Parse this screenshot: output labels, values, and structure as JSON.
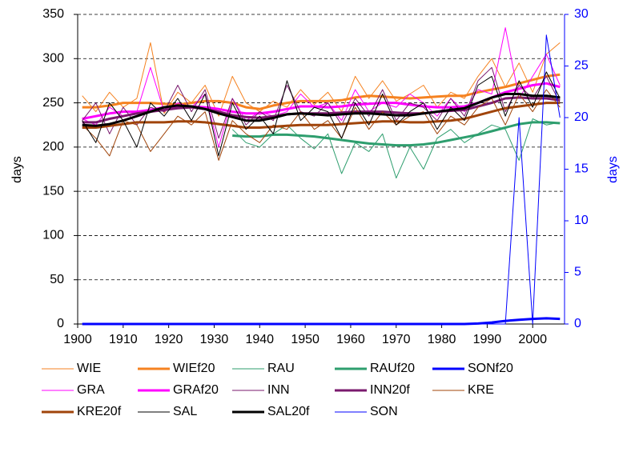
{
  "chart_data": {
    "type": "line",
    "x": [
      1901,
      1904,
      1907,
      1910,
      1913,
      1916,
      1919,
      1922,
      1925,
      1928,
      1931,
      1934,
      1937,
      1940,
      1943,
      1946,
      1949,
      1952,
      1955,
      1958,
      1961,
      1964,
      1967,
      1970,
      1973,
      1976,
      1979,
      1982,
      1985,
      1988,
      1991,
      1994,
      1997,
      2000,
      2003,
      2006
    ],
    "xlim": [
      1900,
      2007
    ],
    "xticks": [
      1900,
      1910,
      1920,
      1930,
      1940,
      1950,
      1960,
      1970,
      1980,
      1990,
      2000
    ],
    "ylim": [
      0,
      350
    ],
    "yticks": [
      0,
      50,
      100,
      150,
      200,
      250,
      300,
      350
    ],
    "y2lim": [
      0,
      30
    ],
    "y2ticks": [
      0,
      5,
      10,
      15,
      20,
      25,
      30
    ],
    "ylabel": "days",
    "y2label": "days",
    "grid": true,
    "y2color": "#0000ff",
    "series": [
      {
        "name": "WIE",
        "color": "#f58220",
        "line_width": 1,
        "values": [
          258,
          240,
          262,
          245,
          255,
          318,
          238,
          262,
          250,
          270,
          235,
          280,
          250,
          240,
          252,
          245,
          265,
          248,
          262,
          240,
          280,
          255,
          275,
          252,
          260,
          270,
          245,
          262,
          255,
          280,
          300,
          268,
          295,
          262,
          305,
          318
        ]
      },
      {
        "name": "WIEf20",
        "color": "#f58220",
        "line_width": 3,
        "values": [
          245,
          245,
          247,
          250,
          250,
          250,
          249,
          248,
          250,
          252,
          252,
          250,
          245,
          243,
          247,
          250,
          252,
          252,
          252,
          253,
          256,
          258,
          257,
          256,
          255,
          256,
          257,
          258,
          258,
          262,
          265,
          268,
          272,
          276,
          280,
          282
        ]
      },
      {
        "name": "RAU",
        "color": "#2e9e6e",
        "line_width": 1,
        "values": [
          null,
          null,
          null,
          null,
          null,
          null,
          null,
          null,
          null,
          null,
          null,
          220,
          205,
          200,
          215,
          225,
          210,
          198,
          215,
          170,
          205,
          195,
          215,
          165,
          200,
          175,
          210,
          220,
          205,
          215,
          225,
          220,
          185,
          232,
          225,
          228
        ]
      },
      {
        "name": "RAUf20",
        "color": "#2e9e6e",
        "line_width": 3,
        "values": [
          null,
          null,
          null,
          null,
          null,
          null,
          null,
          null,
          null,
          null,
          null,
          213,
          212,
          212,
          214,
          214,
          213,
          212,
          210,
          208,
          206,
          204,
          203,
          202,
          202,
          203,
          205,
          208,
          211,
          214,
          218,
          222,
          226,
          228,
          228,
          227
        ]
      },
      {
        "name": "SONf20",
        "color": "#0000ff",
        "line_width": 3,
        "axis": "y2",
        "values": [
          0,
          0,
          0,
          0,
          0,
          0,
          0,
          0,
          0,
          0,
          0,
          0,
          0,
          0,
          0,
          0,
          0,
          0,
          0,
          0,
          0,
          0,
          0,
          0,
          0,
          0,
          0,
          0,
          0,
          0.05,
          0.15,
          0.3,
          0.4,
          0.5,
          0.55,
          0.5
        ]
      },
      {
        "name": "GRA",
        "color": "#ff00ff",
        "line_width": 1,
        "values": [
          232,
          225,
          245,
          235,
          240,
          290,
          240,
          250,
          245,
          260,
          200,
          255,
          230,
          240,
          235,
          240,
          260,
          245,
          250,
          230,
          265,
          240,
          250,
          245,
          260,
          250,
          235,
          255,
          240,
          265,
          260,
          335,
          255,
          280,
          305,
          270
        ]
      },
      {
        "name": "GRAf20",
        "color": "#ff00ff",
        "line_width": 3,
        "values": [
          232,
          235,
          238,
          240,
          240,
          242,
          245,
          246,
          246,
          245,
          243,
          240,
          238,
          238,
          240,
          243,
          246,
          246,
          245,
          246,
          248,
          249,
          250,
          250,
          248,
          246,
          245,
          245,
          246,
          250,
          256,
          262,
          266,
          270,
          272,
          268
        ]
      },
      {
        "name": "INN",
        "color": "#7a1a6e",
        "line_width": 1,
        "values": [
          230,
          250,
          215,
          245,
          225,
          245,
          240,
          270,
          240,
          265,
          210,
          255,
          225,
          240,
          230,
          270,
          240,
          235,
          250,
          225,
          255,
          235,
          265,
          230,
          250,
          245,
          230,
          255,
          235,
          275,
          290,
          240,
          270,
          255,
          280,
          250
        ]
      },
      {
        "name": "INN20f",
        "color": "#7a1a6e",
        "line_width": 3,
        "values": [
          228,
          228,
          232,
          235,
          238,
          240,
          242,
          244,
          245,
          243,
          240,
          236,
          234,
          233,
          235,
          237,
          238,
          238,
          238,
          239,
          240,
          240,
          240,
          239,
          238,
          238,
          240,
          241,
          242,
          246,
          250,
          255,
          256,
          255,
          255,
          253
        ]
      },
      {
        "name": "KRE",
        "color": "#a0440a",
        "line_width": 1,
        "values": [
          225,
          210,
          190,
          230,
          225,
          195,
          215,
          235,
          225,
          240,
          185,
          230,
          215,
          205,
          225,
          220,
          240,
          220,
          230,
          210,
          245,
          220,
          240,
          225,
          235,
          240,
          215,
          235,
          225,
          245,
          255,
          225,
          260,
          240,
          265,
          245
        ]
      },
      {
        "name": "KRE20f",
        "color": "#a0440a",
        "line_width": 3,
        "values": [
          222,
          222,
          224,
          226,
          228,
          228,
          228,
          229,
          229,
          228,
          226,
          224,
          222,
          222,
          223,
          224,
          225,
          225,
          225,
          226,
          227,
          228,
          229,
          229,
          228,
          228,
          229,
          230,
          232,
          236,
          240,
          244,
          246,
          248,
          250,
          250
        ]
      },
      {
        "name": "SAL",
        "color": "#000000",
        "line_width": 1,
        "values": [
          230,
          205,
          250,
          230,
          200,
          250,
          235,
          255,
          230,
          260,
          190,
          250,
          220,
          235,
          215,
          275,
          230,
          245,
          240,
          210,
          250,
          225,
          260,
          225,
          240,
          250,
          220,
          245,
          230,
          270,
          280,
          235,
          275,
          245,
          285,
          255
        ]
      },
      {
        "name": "SAL20f",
        "color": "#000000",
        "line_width": 3,
        "values": [
          225,
          224,
          226,
          230,
          235,
          240,
          245,
          247,
          246,
          243,
          238,
          234,
          230,
          230,
          233,
          237,
          238,
          237,
          236,
          237,
          238,
          238,
          237,
          236,
          236,
          238,
          240,
          242,
          244,
          250,
          256,
          260,
          260,
          258,
          258,
          256
        ]
      },
      {
        "name": "SON",
        "color": "#0000ff",
        "line_width": 1,
        "axis": "y2",
        "values": [
          0,
          0,
          0,
          0,
          0,
          0,
          0,
          0,
          0,
          0,
          0,
          0,
          0,
          0,
          0,
          0,
          0,
          0,
          0,
          0,
          0,
          0,
          0,
          0,
          0,
          0,
          0,
          0,
          0,
          0,
          0,
          0,
          20,
          0,
          28,
          20
        ]
      }
    ]
  }
}
